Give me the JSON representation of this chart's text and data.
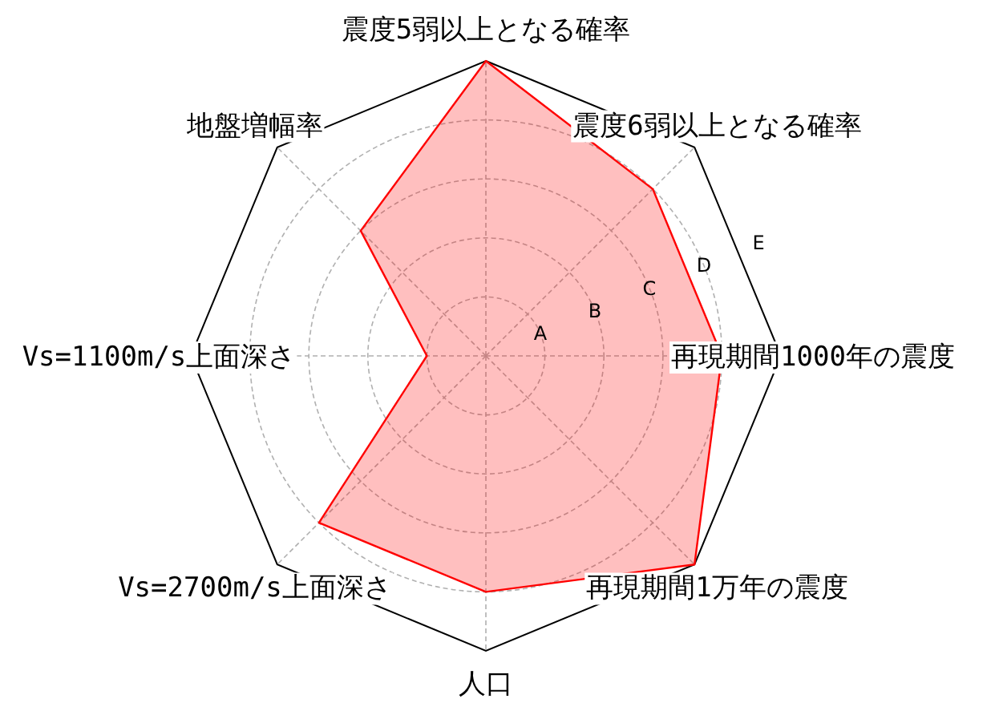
{
  "chart_data": {
    "type": "radar",
    "categories": [
      "震度5弱以上となる確率",
      "震度6弱以上となる確率",
      "再現期間1000年の震度",
      "再現期間1万年の震度",
      "人口",
      "Vs=2700m/s上面深さ",
      "Vs=1100m/s上面深さ",
      "地盤増幅率"
    ],
    "series": [
      {
        "color": "#ff0000",
        "values": [
          5,
          4,
          4,
          5,
          4,
          4,
          1,
          3
        ]
      }
    ],
    "ylim": [
      0,
      5
    ],
    "yticks": [
      {
        "value": 1,
        "label": "A"
      },
      {
        "value": 2,
        "label": "B"
      },
      {
        "value": 3,
        "label": "C"
      },
      {
        "value": 4,
        "label": "D"
      },
      {
        "value": 5,
        "label": "E"
      }
    ],
    "grid": true
  }
}
